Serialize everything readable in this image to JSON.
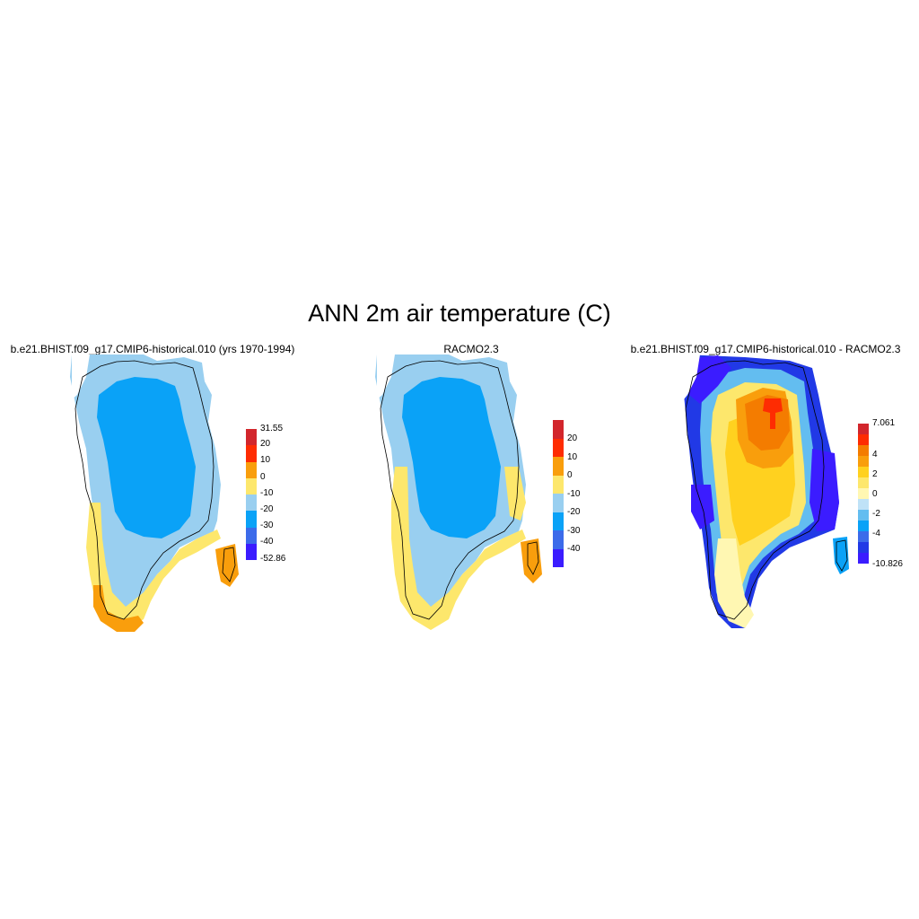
{
  "figure": {
    "title": "ANN 2m air temperature (C)"
  },
  "panels": [
    {
      "title": "b.e21.BHIST.f09_g17.CMIP6-historical.010 (yrs 1970-1994)",
      "colorbar": {
        "colors": [
          "#3b1cff",
          "#3c6bea",
          "#0aa2f7",
          "#99cff0",
          "#fde76c",
          "#f99e0c",
          "#fe2c02",
          "#d2262c"
        ],
        "labels": [
          "-52.86",
          "-40",
          "-30",
          "-20",
          "-10",
          "0",
          "10",
          "20",
          "31.55"
        ]
      }
    },
    {
      "title": "RACMO2.3",
      "colorbar": {
        "colors": [
          "#3b1cff",
          "#3c6bea",
          "#0aa2f7",
          "#99cff0",
          "#fde76c",
          "#f99e0c",
          "#fe2c02",
          "#d2262c"
        ],
        "labels": [
          "-40",
          "-30",
          "-20",
          "-10",
          "0",
          "10",
          "20"
        ]
      }
    },
    {
      "title": "b.e21.BHIST.f09_g17.CMIP6-historical.010 - RACMO2.3",
      "colorbar": {
        "colors": [
          "#3b1cff",
          "#2139e6",
          "#3c6bea",
          "#0aa2f7",
          "#63bdf0",
          "#bfe2f7",
          "#fff7b2",
          "#fde76c",
          "#ffd11f",
          "#f99e0c",
          "#f47c00",
          "#fe2c02",
          "#d2262c"
        ],
        "labels": [
          "-10.826",
          "-4",
          "-2",
          "0",
          "2",
          "4",
          "7.061"
        ]
      }
    }
  ]
}
